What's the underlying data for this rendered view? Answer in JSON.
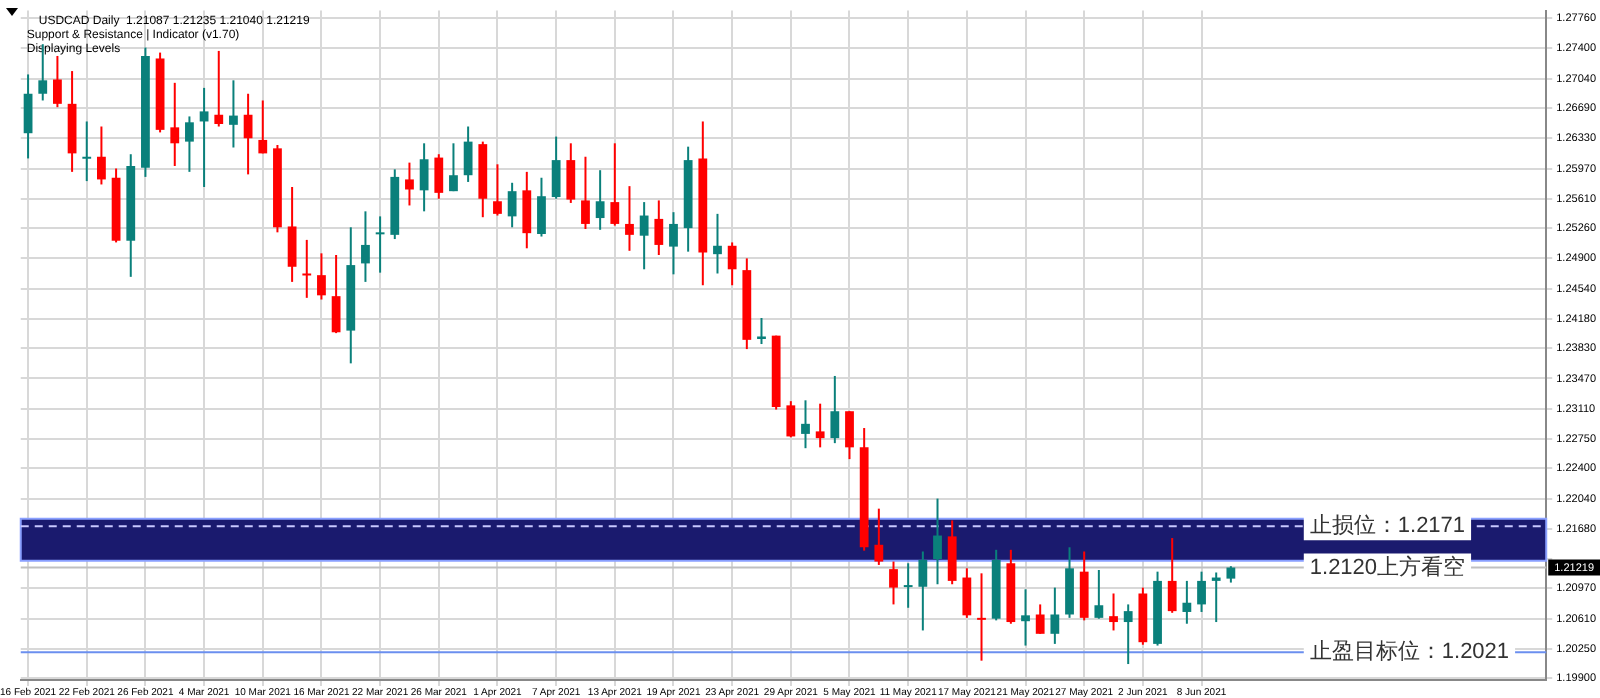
{
  "chart_data": {
    "type": "candlestick",
    "annotations": [
      "USDCAD Daily  1.21087 1.21235 1.21040 1.21219",
      "Support & Resistance | Indicator (v1.70)",
      "Displaying Levels"
    ],
    "categories": [
      "16 Feb 2021",
      null,
      null,
      null,
      "22 Feb 2021",
      null,
      null,
      null,
      "26 Feb 2021",
      null,
      null,
      null,
      "4 Mar 2021",
      null,
      null,
      null,
      "10 Mar 2021",
      null,
      null,
      null,
      "16 Mar 2021",
      null,
      null,
      null,
      "22 Mar 2021",
      null,
      null,
      null,
      "26 Mar 2021",
      null,
      null,
      null,
      "1 Apr 2021",
      null,
      null,
      null,
      "7 Apr 2021",
      null,
      null,
      null,
      "13 Apr 2021",
      null,
      null,
      null,
      "19 Apr 2021",
      null,
      null,
      null,
      "23 Apr 2021",
      null,
      null,
      null,
      "29 Apr 2021",
      null,
      null,
      null,
      "5 May 2021",
      null,
      null,
      null,
      "11 May 2021",
      null,
      null,
      null,
      "17 May 2021",
      null,
      null,
      null,
      "21 May 2021",
      null,
      null,
      null,
      "27 May 2021",
      null,
      null,
      null,
      "2 Jun 2021",
      null,
      null,
      null,
      "8 Jun 2021",
      null,
      null,
      null,
      null,
      null,
      null,
      null,
      null,
      null,
      null,
      null,
      null,
      null,
      null,
      null,
      null,
      null,
      null,
      null,
      null,
      null,
      null,
      null
    ],
    "ohlc": [
      [
        1.2639,
        1.2709,
        1.2609,
        1.2686
      ],
      [
        1.2686,
        1.2745,
        1.2678,
        1.2702
      ],
      [
        1.2703,
        1.2731,
        1.267,
        1.2674
      ],
      [
        1.2674,
        1.2713,
        1.2593,
        1.2615
      ],
      [
        1.261,
        1.2653,
        1.2582,
        1.2611
      ],
      [
        1.2611,
        1.2647,
        1.2578,
        1.2584
      ],
      [
        1.2586,
        1.2597,
        1.2509,
        1.2511
      ],
      [
        1.2511,
        1.2614,
        1.2468,
        1.26
      ],
      [
        1.2598,
        1.2741,
        1.2587,
        1.2731
      ],
      [
        1.2728,
        1.2735,
        1.264,
        1.2643
      ],
      [
        1.2646,
        1.2699,
        1.26,
        1.2627
      ],
      [
        1.2629,
        1.2659,
        1.2593,
        1.2652
      ],
      [
        1.2653,
        1.2693,
        1.2575,
        1.2665
      ],
      [
        1.2661,
        1.2737,
        1.2647,
        1.265
      ],
      [
        1.2649,
        1.2702,
        1.2622,
        1.266
      ],
      [
        1.2661,
        1.2686,
        1.259,
        1.2633
      ],
      [
        1.2631,
        1.2678,
        1.2615,
        1.2615
      ],
      [
        1.2621,
        1.2625,
        1.2521,
        1.2527
      ],
      [
        1.2528,
        1.2575,
        1.2462,
        1.248
      ],
      [
        1.2472,
        1.2512,
        1.2443,
        1.247
      ],
      [
        1.247,
        1.2496,
        1.2441,
        1.2446
      ],
      [
        1.2445,
        1.2494,
        1.2401,
        1.2402
      ],
      [
        1.2404,
        1.2527,
        1.2365,
        1.2482
      ],
      [
        1.2484,
        1.2546,
        1.2462,
        1.2506
      ],
      [
        1.2519,
        1.254,
        1.2473,
        1.2521
      ],
      [
        1.2518,
        1.2596,
        1.2513,
        1.2587
      ],
      [
        1.2584,
        1.2604,
        1.2553,
        1.2572
      ],
      [
        1.2571,
        1.2627,
        1.2546,
        1.2608
      ],
      [
        1.261,
        1.2614,
        1.2561,
        1.2568
      ],
      [
        1.257,
        1.2627,
        1.257,
        1.2589
      ],
      [
        1.2589,
        1.2647,
        1.2581,
        1.2629
      ],
      [
        1.2626,
        1.2629,
        1.2539,
        1.2561
      ],
      [
        1.2558,
        1.2602,
        1.2541,
        1.2543
      ],
      [
        1.254,
        1.258,
        1.2527,
        1.257
      ],
      [
        1.2571,
        1.2593,
        1.2502,
        1.252
      ],
      [
        1.2519,
        1.2586,
        1.2516,
        1.2564
      ],
      [
        1.2563,
        1.2635,
        1.2561,
        1.2607
      ],
      [
        1.2607,
        1.2627,
        1.2556,
        1.256
      ],
      [
        1.2559,
        1.2611,
        1.2525,
        1.2531
      ],
      [
        1.2538,
        1.2595,
        1.2524,
        1.2558
      ],
      [
        1.2557,
        1.2627,
        1.2529,
        1.2531
      ],
      [
        1.2531,
        1.2576,
        1.2499,
        1.2518
      ],
      [
        1.2517,
        1.2557,
        1.2477,
        1.2541
      ],
      [
        1.2537,
        1.2559,
        1.2494,
        1.2506
      ],
      [
        1.2504,
        1.2545,
        1.2471,
        1.2531
      ],
      [
        1.2526,
        1.2623,
        1.2498,
        1.2607
      ],
      [
        1.2609,
        1.2653,
        1.2458,
        1.2497
      ],
      [
        1.2495,
        1.2543,
        1.2472,
        1.2505
      ],
      [
        1.2505,
        1.2509,
        1.2458,
        1.2477
      ],
      [
        1.2476,
        1.249,
        1.2382,
        1.2393
      ],
      [
        1.2394,
        1.2419,
        1.2388,
        1.2397
      ],
      [
        1.2398,
        1.2398,
        1.231,
        1.2313
      ],
      [
        1.2315,
        1.232,
        1.2277,
        1.2278
      ],
      [
        1.2281,
        1.2321,
        1.2264,
        1.2293
      ],
      [
        1.2284,
        1.2317,
        1.2265,
        1.2276
      ],
      [
        1.2276,
        1.235,
        1.227,
        1.2308
      ],
      [
        1.2308,
        1.2308,
        1.2251,
        1.2265
      ],
      [
        1.2265,
        1.2288,
        1.2142,
        1.2146
      ],
      [
        1.2149,
        1.2192,
        1.2125,
        1.2129
      ],
      [
        1.212,
        1.2129,
        1.2078,
        1.2098
      ],
      [
        1.2099,
        1.2127,
        1.2074,
        1.2101
      ],
      [
        1.2099,
        1.2141,
        1.2047,
        1.2131
      ],
      [
        1.2132,
        1.2204,
        1.2102,
        1.216
      ],
      [
        1.2159,
        1.2178,
        1.2102,
        1.2106
      ],
      [
        1.211,
        1.2121,
        1.2062,
        1.2065
      ],
      [
        1.2062,
        1.2115,
        1.2011,
        1.2061
      ],
      [
        1.2061,
        1.2143,
        1.2059,
        1.2131
      ],
      [
        1.2127,
        1.2143,
        1.2055,
        1.2057
      ],
      [
        1.2058,
        1.2096,
        1.2029,
        1.2065
      ],
      [
        1.2066,
        1.2078,
        1.2043,
        1.2043
      ],
      [
        1.2043,
        1.2098,
        1.2031,
        1.2066
      ],
      [
        1.2066,
        1.2146,
        1.2062,
        1.2121
      ],
      [
        1.2117,
        1.2141,
        1.2059,
        1.2062
      ],
      [
        1.2062,
        1.2119,
        1.2061,
        1.2077
      ],
      [
        1.2064,
        1.2091,
        1.2047,
        1.2057
      ],
      [
        1.2057,
        1.2078,
        1.2007,
        1.207
      ],
      [
        1.2091,
        1.2098,
        1.203,
        1.2033
      ],
      [
        1.2031,
        1.2117,
        1.2029,
        1.2106
      ],
      [
        1.2106,
        1.2157,
        1.2068,
        1.207
      ],
      [
        1.2069,
        1.2106,
        1.2055,
        1.208
      ],
      [
        1.2078,
        1.2117,
        1.2069,
        1.2106
      ],
      [
        1.2106,
        1.2116,
        1.2057,
        1.211
      ],
      [
        1.21087,
        1.21235,
        1.2104,
        1.21219
      ],
      null,
      null,
      null,
      null,
      null,
      null,
      null,
      null,
      null,
      null,
      null,
      null,
      null,
      null,
      null,
      null,
      null,
      null,
      null,
      null,
      null
    ],
    "colors": [
      "#0a807b",
      "#0a807b",
      "#ff0000",
      "#ff0000",
      "#0a807b",
      "#ff0000",
      "#ff0000",
      "#0a807b",
      "#0a807b",
      "#ff0000",
      "#ff0000",
      "#0a807b",
      "#0a807b",
      "#ff0000",
      "#0a807b",
      "#ff0000",
      "#ff0000",
      "#ff0000",
      "#ff0000",
      "#ff0000",
      "#ff0000",
      "#ff0000",
      "#0a807b",
      "#0a807b",
      "#0a807b",
      "#0a807b",
      "#ff0000",
      "#0a807b",
      "#ff0000",
      "#0a807b",
      "#0a807b",
      "#ff0000",
      "#ff0000",
      "#0a807b",
      "#ff0000",
      "#0a807b",
      "#0a807b",
      "#ff0000",
      "#ff0000",
      "#0a807b",
      "#ff0000",
      "#ff0000",
      "#0a807b",
      "#ff0000",
      "#0a807b",
      "#0a807b",
      "#ff0000",
      "#0a807b",
      "#ff0000",
      "#ff0000",
      "#0a807b",
      "#ff0000",
      "#ff0000",
      "#0a807b",
      "#ff0000",
      "#0a807b",
      "#ff0000",
      "#ff0000",
      "#ff0000",
      "#ff0000",
      "#0a807b",
      "#0a807b",
      "#0a807b",
      "#ff0000",
      "#ff0000",
      "#ff0000",
      "#0a807b",
      "#ff0000",
      "#0a807b",
      "#ff0000",
      "#0a807b",
      "#0a807b",
      "#ff0000",
      "#0a807b",
      "#ff0000",
      "#0a807b",
      "#ff0000",
      "#0a807b",
      "#ff0000",
      "#0a807b",
      "#0a807b",
      "#0a807b",
      "#0a807b",
      null,
      null,
      null,
      null,
      null,
      null,
      null,
      null,
      null,
      null,
      null,
      null,
      null,
      null,
      null,
      null,
      null,
      null,
      null,
      null,
      null
    ],
    "value_labels": [
      null,
      null,
      null,
      null,
      null,
      null,
      null,
      null,
      null,
      null,
      null,
      null,
      null,
      null,
      null,
      null,
      null,
      null,
      null,
      null,
      null,
      null,
      null,
      null,
      null,
      null,
      null,
      null,
      null,
      null,
      null,
      null,
      null,
      null,
      null,
      null,
      null,
      null,
      null,
      null,
      null,
      null,
      null,
      null,
      null,
      null,
      null,
      null,
      null,
      null,
      null,
      null,
      null,
      null,
      null,
      null,
      null,
      null,
      null,
      null,
      null,
      null,
      null,
      null,
      null,
      null,
      null,
      null,
      null,
      null,
      null,
      null,
      null,
      null,
      null,
      null,
      null,
      null,
      null,
      null,
      null,
      null,
      "1.21219",
      null,
      null,
      null,
      null,
      null,
      null,
      null,
      null,
      null,
      null,
      null,
      null,
      null,
      null,
      null,
      null,
      null,
      null,
      null,
      null,
      null
    ],
    "ylim": [
      1.1988,
      1.2785
    ],
    "yticks": [
      {
        "value": 1.2776,
        "label": "1.27760"
      },
      {
        "value": 1.274,
        "label": "1.27400"
      },
      {
        "value": 1.2704,
        "label": "1.27040"
      },
      {
        "value": 1.2669,
        "label": "1.26690"
      },
      {
        "value": 1.2633,
        "label": "1.26330"
      },
      {
        "value": 1.2597,
        "label": "1.25970"
      },
      {
        "value": 1.2561,
        "label": "1.25610"
      },
      {
        "value": 1.2526,
        "label": "1.25260"
      },
      {
        "value": 1.249,
        "label": "1.24900"
      },
      {
        "value": 1.2454,
        "label": "1.24540"
      },
      {
        "value": 1.2418,
        "label": "1.24180"
      },
      {
        "value": 1.2383,
        "label": "1.23830"
      },
      {
        "value": 1.2347,
        "label": "1.23470"
      },
      {
        "value": 1.2311,
        "label": "1.23110"
      },
      {
        "value": 1.2275,
        "label": "1.22750"
      },
      {
        "value": 1.224,
        "label": "1.22400"
      },
      {
        "value": 1.2204,
        "label": "1.22040"
      },
      {
        "value": 1.2168,
        "label": "1.21680"
      },
      {
        "value": 1.2132,
        "label": null
      },
      {
        "value": 1.2097,
        "label": "1.20970"
      },
      {
        "value": 1.2061,
        "label": "1.20610"
      },
      {
        "value": 1.2025,
        "label": "1.20250"
      },
      {
        "value": 1.199,
        "label": "1.19900"
      }
    ],
    "grid": true,
    "bands": [
      {
        "axis": "y",
        "from": 1.213,
        "to": 1.218,
        "color": "#1a1a6e"
      }
    ],
    "ref_lines": [
      {
        "axis": "y",
        "value": 1.2171,
        "label": "止损位：1.2171",
        "color": "#c8c8ff",
        "line_style": "dashed"
      },
      {
        "axis": "y",
        "value": 1.21219,
        "label": "1.2120上方看空",
        "color": "#c0c0c0",
        "line_style": "solid"
      },
      {
        "axis": "y",
        "value": 1.2021,
        "label": "止盈目标位：1.2021",
        "color": "#6b8fef",
        "line_style": "solid"
      }
    ]
  }
}
